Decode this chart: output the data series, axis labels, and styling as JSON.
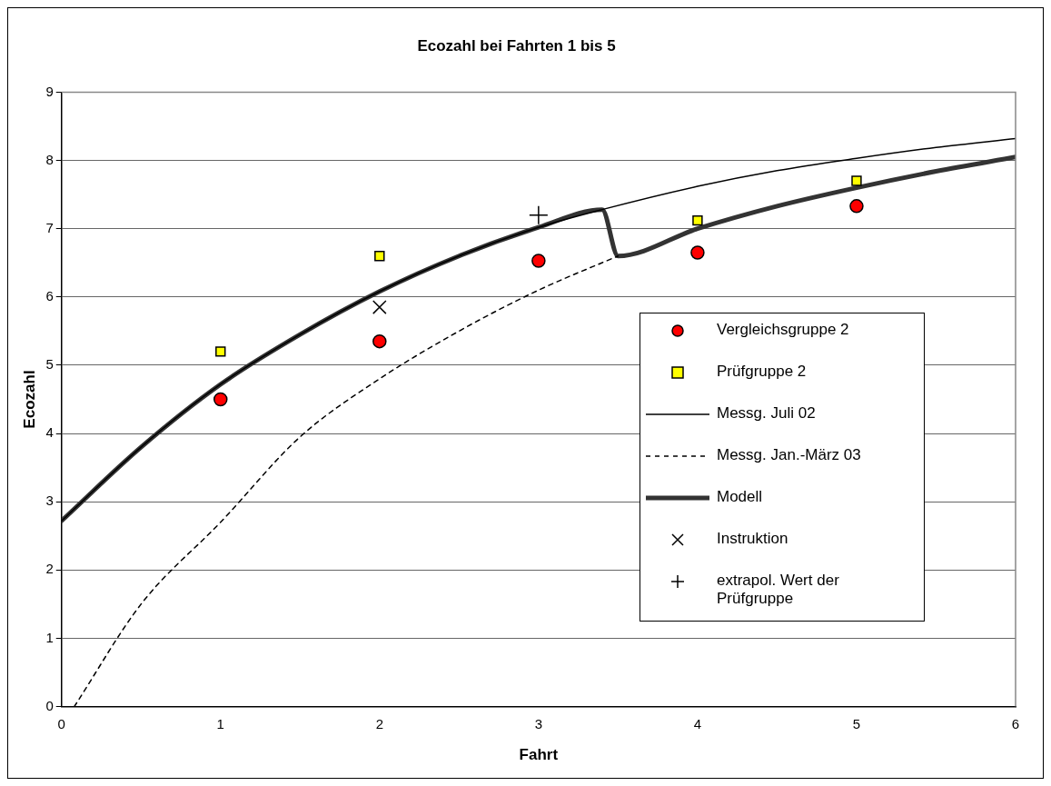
{
  "chart_data": {
    "type": "scatter",
    "title": "Ecozahl bei Fahrten 1 bis 5",
    "xlabel": "Fahrt",
    "ylabel": "Ecozahl",
    "xlim": [
      0,
      6
    ],
    "xticks": [
      0,
      1,
      2,
      3,
      4,
      5,
      6
    ],
    "ylim": [
      0,
      9
    ],
    "yticks": [
      0,
      1,
      2,
      3,
      4,
      5,
      6,
      7,
      8,
      9
    ],
    "grid": "y",
    "legend": "right",
    "series": [
      {
        "name": "Vergleichsgruppe 2",
        "marker": "circle",
        "color": "#ff0000",
        "x": [
          1,
          2,
          3,
          4,
          5
        ],
        "values": [
          4.5,
          5.35,
          6.53,
          6.65,
          7.33
        ]
      },
      {
        "name": "Prüfgruppe 2",
        "marker": "square",
        "color": "#ffff00",
        "x": [
          1,
          2,
          4,
          5
        ],
        "values": [
          5.2,
          6.6,
          7.12,
          7.7
        ]
      },
      {
        "name": "Messg. Juli 02",
        "type": "line",
        "line_style": "solid",
        "color": "#000000",
        "x": [
          0,
          0.5,
          1,
          1.5,
          2,
          2.5,
          3,
          3.4,
          4,
          4.5,
          5,
          5.5,
          6
        ],
        "values": [
          2.72,
          3.8,
          4.72,
          5.45,
          6.08,
          6.6,
          7.02,
          7.28,
          7.62,
          7.85,
          8.03,
          8.19,
          8.32
        ]
      },
      {
        "name": "Messg. Jan.-März 03",
        "type": "line",
        "line_style": "dashed",
        "color": "#000000",
        "x": [
          0.08,
          0.5,
          1,
          1.5,
          2,
          2.5,
          3,
          3.5
        ],
        "values": [
          0,
          1.5,
          2.7,
          3.95,
          4.8,
          5.5,
          6.1,
          6.6
        ]
      },
      {
        "name": "Modell",
        "type": "line",
        "line_style": "solid",
        "color": "#333333",
        "x": [
          0,
          0.5,
          1,
          1.5,
          2,
          2.5,
          3,
          3.4,
          3.5,
          4,
          4.5,
          5,
          5.5,
          6
        ],
        "values": [
          2.72,
          3.8,
          4.72,
          5.45,
          6.08,
          6.6,
          7.02,
          7.28,
          6.6,
          7.0,
          7.33,
          7.6,
          7.84,
          8.05
        ]
      },
      {
        "name": "Instruktion",
        "marker": "cross",
        "color": "#000000",
        "x": [
          2
        ],
        "values": [
          5.85
        ]
      },
      {
        "name": "extrapol. Wert der Prüfgruppe",
        "marker": "plus",
        "color": "#000000",
        "x": [
          3
        ],
        "values": [
          7.2
        ]
      }
    ]
  }
}
